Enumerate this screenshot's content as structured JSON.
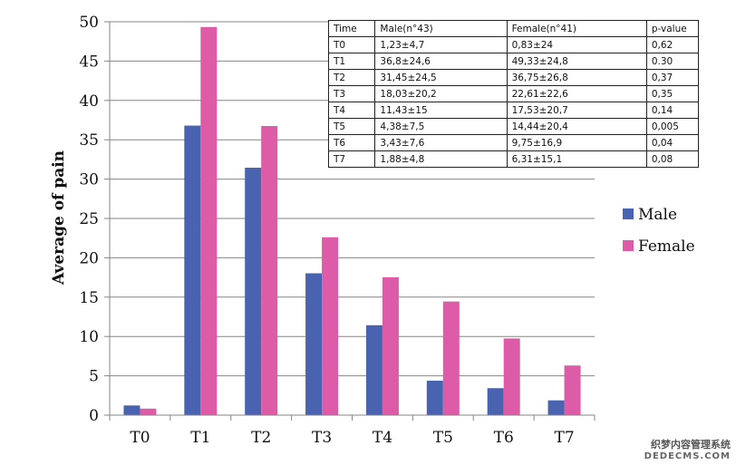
{
  "chart_data": {
    "type": "bar",
    "categories": [
      "T0",
      "T1",
      "T2",
      "T3",
      "T4",
      "T5",
      "T6",
      "T7"
    ],
    "series": [
      {
        "name": "Male",
        "values": [
          1.23,
          36.8,
          31.45,
          18.03,
          11.43,
          4.38,
          3.43,
          1.88
        ]
      },
      {
        "name": "Female",
        "values": [
          0.83,
          49.33,
          36.75,
          22.61,
          17.53,
          14.44,
          9.75,
          6.31
        ]
      }
    ],
    "title": "",
    "xlabel": "",
    "ylabel": "Average of pain",
    "ylim": [
      0,
      50
    ],
    "yticks": [
      0,
      5,
      10,
      15,
      20,
      25,
      30,
      35,
      40,
      45,
      50
    ],
    "grid": true,
    "legend_position": "right",
    "colors": {
      "Male": "#4a63b1",
      "Female": "#dd5ba7",
      "grid": "#868686"
    }
  },
  "table": {
    "headers": [
      "Time",
      "Male(n°43)",
      "Female(n°41)",
      "p-value"
    ],
    "rows": [
      [
        "T0",
        "1,23±4,7",
        "0,83±24",
        "0,62"
      ],
      [
        "T1",
        "36,8±24,6",
        "49,33±24,8",
        "0.30"
      ],
      [
        "T2",
        "31,45±24,5",
        "36,75±26,8",
        "0,37"
      ],
      [
        "T3",
        "18,03±20,2",
        "22,61±22,6",
        "0,35"
      ],
      [
        "T4",
        "11,43±15",
        "17,53±20,7",
        "0,14"
      ],
      [
        "T5",
        "4,38±7,5",
        "14,44±20,4",
        "0,005"
      ],
      [
        "T6",
        "3,43±7,6",
        "9,75±16,9",
        "0,04"
      ],
      [
        "T7",
        "1,88±4,8",
        "6,31±15,1",
        "0,08"
      ]
    ]
  },
  "watermark": {
    "line1": "织梦内容管理系统",
    "line2": "DEDECMS.COM"
  }
}
